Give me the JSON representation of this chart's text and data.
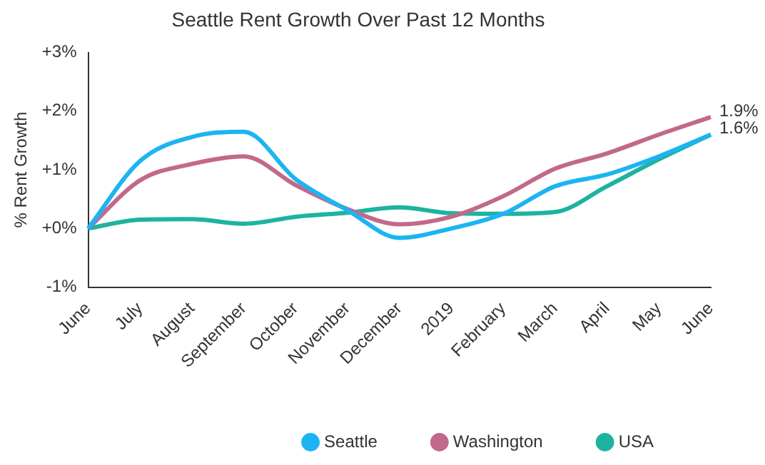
{
  "chart_data": {
    "type": "line",
    "title": "Seattle Rent Growth Over Past 12 Months",
    "ylabel": "% Rent Growth",
    "categories": [
      "June",
      "July",
      "August",
      "September",
      "October",
      "November",
      "December",
      "2019",
      "February",
      "March",
      "April",
      "May",
      "June"
    ],
    "series": [
      {
        "name": "Seattle",
        "color": "#1cb4f2",
        "values": [
          0,
          1.15,
          1.56,
          1.65,
          0.84,
          0.31,
          -0.16,
          0.0,
          0.25,
          0.72,
          0.92,
          1.23,
          1.6
        ],
        "value_labels": [
          null,
          null,
          null,
          null,
          null,
          null,
          null,
          null,
          null,
          null,
          null,
          null,
          "1.6%"
        ]
      },
      {
        "name": "Washington",
        "color": "#c2698b",
        "values": [
          0,
          0.82,
          1.1,
          1.23,
          0.74,
          0.33,
          0.07,
          0.2,
          0.55,
          1.02,
          1.28,
          1.6,
          1.9
        ],
        "value_labels": [
          null,
          null,
          null,
          null,
          null,
          null,
          null,
          null,
          null,
          null,
          null,
          null,
          "1.9%"
        ]
      },
      {
        "name": "USA",
        "color": "#1db3a0",
        "values": [
          0,
          0.15,
          0.16,
          0.08,
          0.2,
          0.27,
          0.36,
          0.26,
          0.25,
          0.28,
          0.72,
          1.18,
          1.6
        ]
      }
    ],
    "ylim": [
      -1,
      3
    ],
    "yticks": [
      {
        "value": -1,
        "label": "-1%"
      },
      {
        "value": 0,
        "label": "+0%"
      },
      {
        "value": 1,
        "label": "+1%"
      },
      {
        "value": 2,
        "label": "+2%"
      },
      {
        "value": 3,
        "label": "+3%"
      }
    ],
    "grid": false,
    "legend": "bottom right",
    "marker": "none",
    "line_style": "solid"
  }
}
